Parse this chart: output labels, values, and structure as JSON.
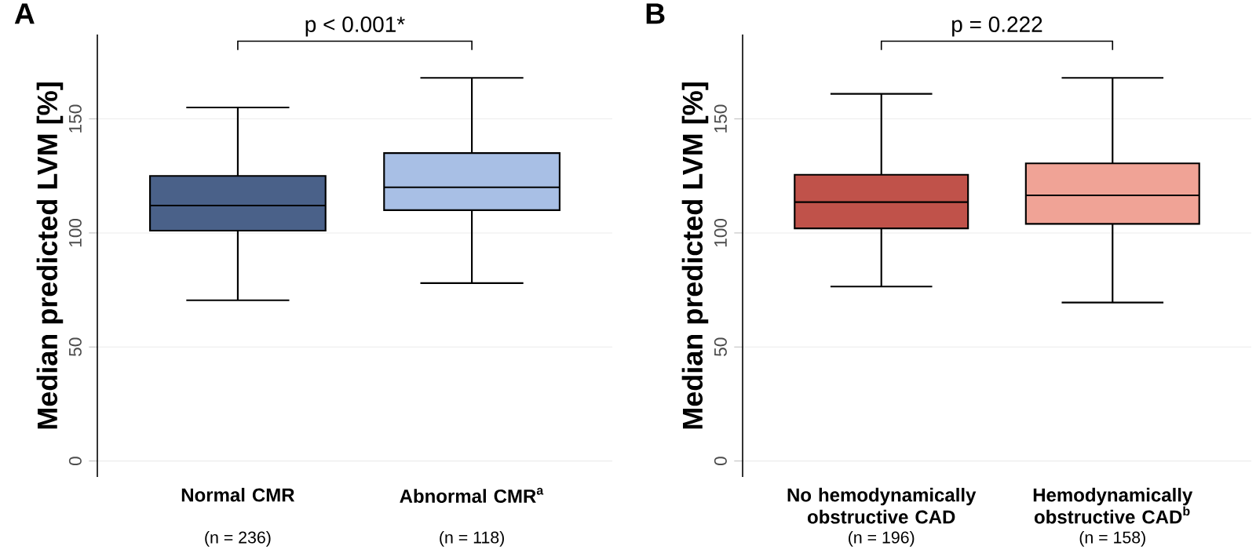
{
  "chart_data": [
    {
      "type": "box",
      "title": "A",
      "ylabel": "Median predicted LVM [%]",
      "categories": [
        "Normal CMR",
        "Abnormal CMR$^{a}$"
      ],
      "boxes": [
        {
          "low": 70.5,
          "q1": 101,
          "median": 112,
          "q3": 125,
          "high": 155
        },
        {
          "low": 78,
          "q1": 110,
          "median": 120,
          "q3": 135,
          "high": 168
        }
      ],
      "colors": [
        "#4a6189",
        "#a8bfe5"
      ],
      "ylim": [
        -7,
        187
      ],
      "yticks": [
        0,
        50,
        100,
        150
      ],
      "grid": "y",
      "annotations": [
        "p < 0.001*",
        "(n = 236)",
        "(n = 118)"
      ]
    },
    {
      "type": "box",
      "title": "B",
      "ylabel": "Median predicted LVM [%]",
      "categories": [
        "No hemodynamically obstructive CAD",
        "Hemodynamically obstructive CAD$^{b}$"
      ],
      "boxes": [
        {
          "low": 76.5,
          "q1": 102,
          "median": 113.5,
          "q3": 125.5,
          "high": 161
        },
        {
          "low": 69.5,
          "q1": 104,
          "median": 116.5,
          "q3": 130.5,
          "high": 168
        }
      ],
      "colors": [
        "#c0524a",
        "#f0a396"
      ],
      "ylim": [
        -7,
        187
      ],
      "yticks": [
        0,
        50,
        100,
        150
      ],
      "grid": "y",
      "annotations": [
        "p = 0.222",
        "(n = 196)",
        "(n = 158)"
      ]
    }
  ]
}
